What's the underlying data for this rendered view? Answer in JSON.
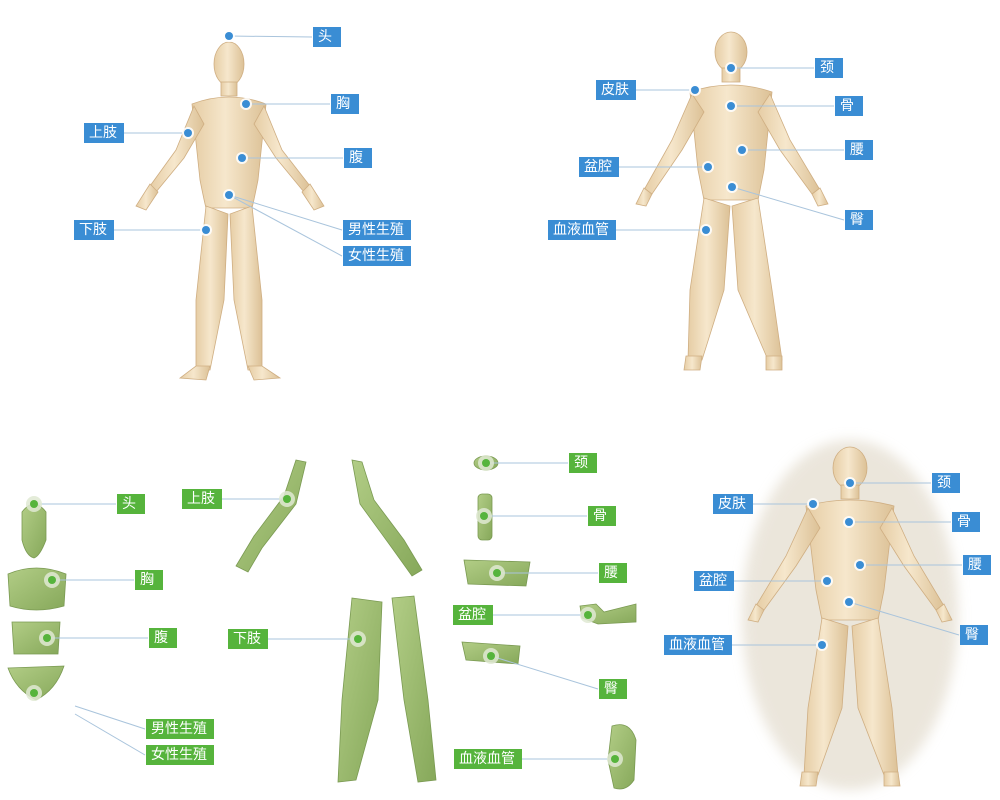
{
  "colors": {
    "blue": "#3a8dd4",
    "green": "#56b43c",
    "skin": "#efdcbc",
    "skin_shade": "#d9bd92",
    "organ": "#9ebd72",
    "organ_shade": "#7f9f55",
    "leader": "#a9c4dc"
  },
  "front_view": {
    "labels": [
      "头",
      "上肢",
      "胸",
      "腹",
      "下肢",
      "男性生殖",
      "女性生殖"
    ]
  },
  "back_view_top": {
    "labels": [
      "颈",
      "皮肤",
      "骨",
      "腰",
      "盆腔",
      "臀",
      "血液血管"
    ]
  },
  "parts_view": {
    "labels": [
      "头",
      "胸",
      "腹",
      "男性生殖",
      "女性生殖",
      "上肢",
      "下肢",
      "颈",
      "骨",
      "腰",
      "盆腔",
      "臀",
      "血液血管"
    ]
  },
  "back_view_bottom": {
    "labels": [
      "颈",
      "皮肤",
      "骨",
      "腰",
      "盆腔",
      "臀",
      "血液血管"
    ]
  }
}
